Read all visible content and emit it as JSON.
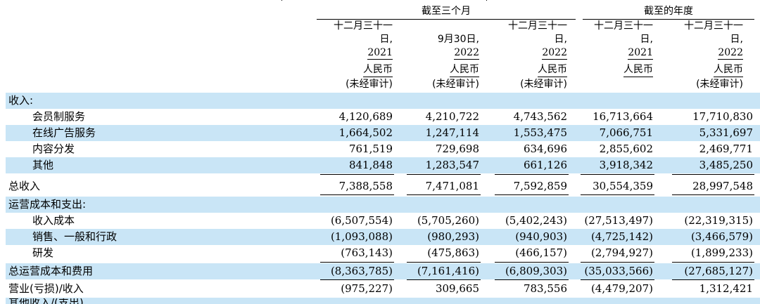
{
  "header": {
    "group_three_months": "截至三个月",
    "group_year": "截至的年度"
  },
  "columns": [
    {
      "line1": "十二月三十一",
      "line2": "日,",
      "line3": "2021",
      "currency": "人民币",
      "audit": "(未经审计)"
    },
    {
      "line1": "",
      "line2": "9月30日,",
      "line3": "2022",
      "currency": "人民币",
      "audit": "(未经审计)"
    },
    {
      "line1": "十二月三十一",
      "line2": "日,",
      "line3": "2022",
      "currency": "人民币",
      "audit": "(未经审计)"
    },
    {
      "line1": "十二月三十一",
      "line2": "日,",
      "line3": "2021",
      "currency": "人民币",
      "audit": ""
    },
    {
      "line1": "十二月三十一",
      "line2": "日,",
      "line3": "2022",
      "currency": "人民币",
      "audit": "(未经审计)"
    }
  ],
  "rows": [
    {
      "label": "收入:",
      "values": [
        "",
        "",
        "",
        "",
        ""
      ]
    },
    {
      "label": "会员制服务",
      "values": [
        "4,120,689",
        "4,210,722",
        "4,743,562",
        "16,713,664",
        "17,710,830"
      ]
    },
    {
      "label": "在线广告服务",
      "values": [
        "1,664,502",
        "1,247,114",
        "1,553,475",
        "7,066,751",
        "5,331,697"
      ]
    },
    {
      "label": "内容分发",
      "values": [
        "761,519",
        "729,698",
        "634,696",
        "2,855,602",
        "2,469,771"
      ]
    },
    {
      "label": "其他",
      "values": [
        "841,848",
        "1,283,547",
        "661,126",
        "3,918,342",
        "3,485,250"
      ]
    },
    {
      "label": "总收入",
      "values": [
        "7,388,558",
        "7,471,081",
        "7,592,859",
        "30,554,359",
        "28,997,548"
      ]
    },
    {
      "label": "运营成本和支出:",
      "values": [
        "",
        "",
        "",
        "",
        ""
      ]
    },
    {
      "label": "收入成本",
      "values": [
        "(6,507,554)",
        "(5,705,260)",
        "(5,402,243)",
        "(27,513,497)",
        "(22,319,315)"
      ]
    },
    {
      "label": "销售、一般和行政",
      "values": [
        "(1,093,088)",
        "(980,293)",
        "(940,903)",
        "(4,725,142)",
        "(3,466,579)"
      ]
    },
    {
      "label": "研发",
      "values": [
        "(763,143)",
        "(475,863)",
        "(466,157)",
        "(2,794,927)",
        "(1,899,233)"
      ]
    },
    {
      "label": "总运营成本和费用",
      "values": [
        "(8,363,785)",
        "(7,161,416)",
        "(6,809,303)",
        "(35,033,566)",
        "(27,685,127)"
      ]
    },
    {
      "label": "营业(亏损)/收入",
      "values": [
        "(975,227)",
        "309,665",
        "783,556",
        "(4,479,207)",
        "1,312,421"
      ]
    }
  ],
  "footer": {
    "cut_label": "其他收入/(支出)"
  }
}
